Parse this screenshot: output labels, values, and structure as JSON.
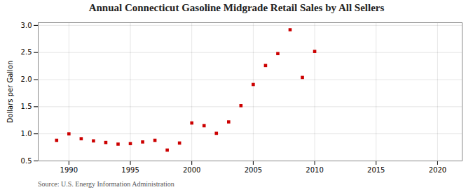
{
  "chart_data": {
    "type": "scatter",
    "title": "Annual Connecticut Gasoline Midgrade Retail Sales by All Sellers",
    "ylabel": "Dollars per Gallon",
    "source": "Source: U.S. Energy Information Administration",
    "x": [
      1989,
      1990,
      1991,
      1992,
      1993,
      1994,
      1995,
      1996,
      1997,
      1998,
      1999,
      2000,
      2001,
      2002,
      2003,
      2004,
      2005,
      2006,
      2007,
      2008,
      2009,
      2010
    ],
    "values": [
      0.88,
      1.0,
      0.91,
      0.87,
      0.84,
      0.81,
      0.82,
      0.85,
      0.88,
      0.7,
      0.83,
      1.2,
      1.15,
      1.01,
      1.22,
      1.52,
      1.91,
      2.26,
      2.48,
      2.92,
      2.04,
      2.52
    ],
    "color": "#cc0000",
    "marker": "square",
    "xlim": [
      1987.5,
      2022
    ],
    "ylim": [
      0.5,
      3.05
    ],
    "xticks": [
      1990,
      1995,
      2000,
      2005,
      2010,
      2015,
      2020
    ],
    "yticks": [
      0.5,
      {
        "value": 1,
        "label": "1.0"
      },
      1.5,
      {
        "value": 2,
        "label": "2.0"
      },
      2.5,
      {
        "value": 3,
        "label": "3.0"
      }
    ],
    "grid": true
  }
}
